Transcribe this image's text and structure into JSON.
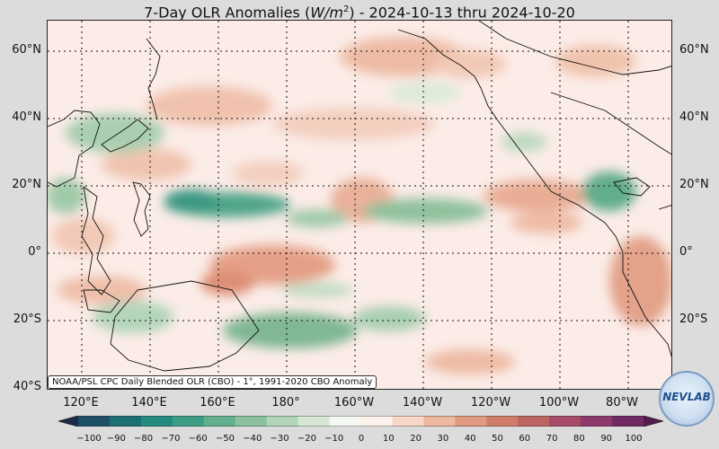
{
  "title": {
    "prefix": "7-Day OLR Anomalies (",
    "unit_base": "W/m",
    "unit_exp": "2",
    "suffix": ") - 2024-10-13 thru 2024-10-20"
  },
  "map": {
    "lat_labels": [
      "60°N",
      "40°N",
      "20°N",
      "0°",
      "20°S",
      "40°S"
    ],
    "lon_labels": [
      "120°E",
      "140°E",
      "160°E",
      "180°",
      "160°W",
      "140°W",
      "120°W",
      "100°W",
      "80°W"
    ],
    "lat_range": [
      -40,
      68
    ],
    "lon_range": [
      108,
      290
    ]
  },
  "attribution": "NOAA/PSL CPC Daily Blended OLR (CBO) - 1°, 1991-2020 CBO Anomaly",
  "colorbar": {
    "ticks": [
      "−100",
      "−90",
      "−80",
      "−70",
      "−60",
      "−50",
      "−40",
      "−30",
      "−20",
      "−10",
      "0",
      "10",
      "20",
      "30",
      "40",
      "50",
      "60",
      "70",
      "80",
      "90",
      "100"
    ],
    "colors": [
      "#1b2a4a",
      "#1f4f66",
      "#1c6f72",
      "#238a7e",
      "#3c9d86",
      "#62b08e",
      "#8ac29f",
      "#b2d6b8",
      "#d6e8d5",
      "#f4f8f2",
      "#fdf1ec",
      "#f8d7c8",
      "#eeb8a0",
      "#e09a80",
      "#cf7d68",
      "#bd6463",
      "#a64c68",
      "#8c3a6c",
      "#6f2a63",
      "#521c4f"
    ]
  },
  "logo": {
    "text": "NEVLAB"
  }
}
